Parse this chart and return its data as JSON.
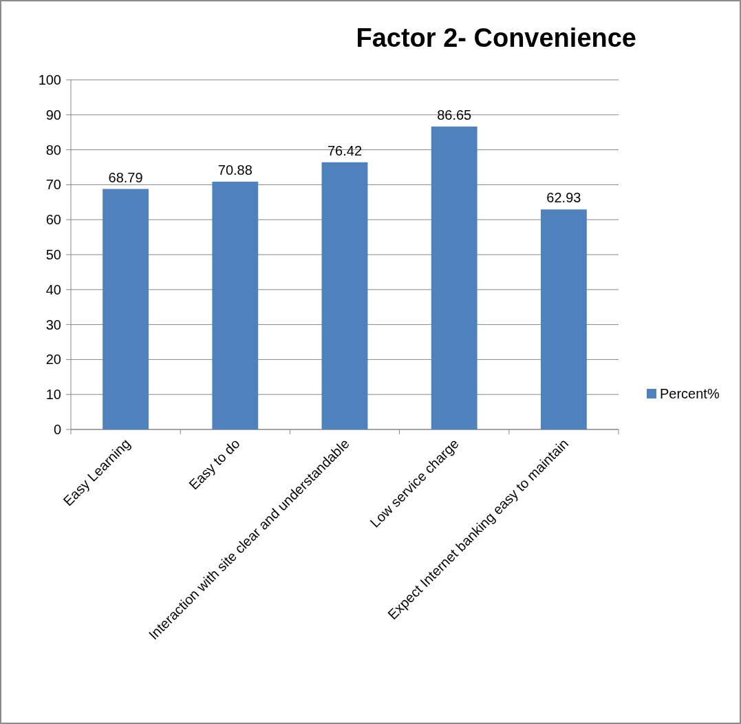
{
  "chart_data": {
    "type": "bar",
    "title": "Factor 2- Convenience",
    "categories": [
      "Easy Learning",
      "Easy to do",
      "Interaction with site clear and understandable",
      "Low service charge",
      "Expect Internet banking easy to maintain"
    ],
    "series": [
      {
        "name": "Percent%",
        "color": "#4f81bd",
        "values": [
          68.79,
          70.88,
          76.42,
          86.65,
          62.93
        ]
      }
    ],
    "ylim": [
      0,
      100
    ],
    "yticks": [
      0,
      10,
      20,
      30,
      40,
      50,
      60,
      70,
      80,
      90,
      100
    ],
    "grid": "y",
    "legend": "right",
    "data_labels": true
  }
}
